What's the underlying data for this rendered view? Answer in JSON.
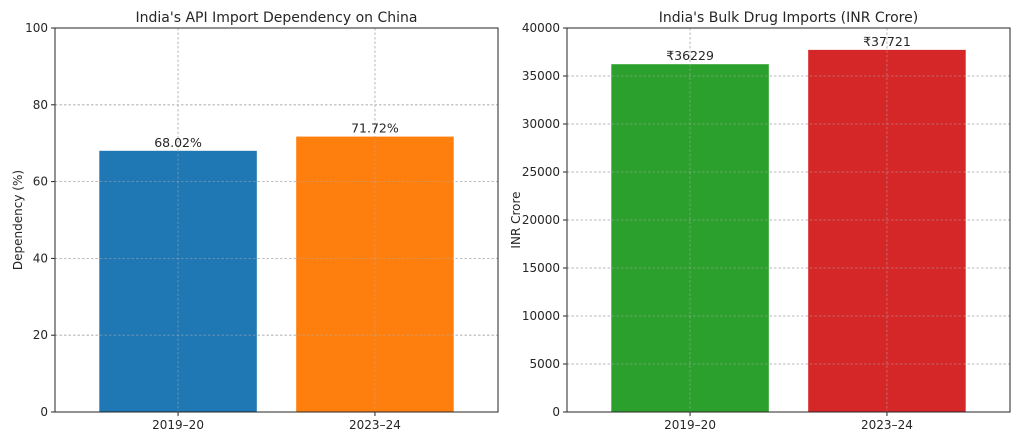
{
  "chart_data": [
    {
      "type": "bar",
      "title": "India's API Import Dependency on China",
      "xlabel": "",
      "ylabel": "Dependency (%)",
      "categories": [
        "2019–20",
        "2023–24"
      ],
      "values": [
        68.02,
        71.72
      ],
      "data_labels": [
        "68.02%",
        "71.72%"
      ],
      "colors": [
        "#1f77b4",
        "#ff7f0e"
      ],
      "ylim": [
        0,
        100
      ],
      "yticks": [
        0,
        20,
        40,
        60,
        80,
        100
      ],
      "grid": true
    },
    {
      "type": "bar",
      "title": "India's Bulk Drug Imports (INR Crore)",
      "xlabel": "",
      "ylabel": "INR Crore",
      "categories": [
        "2019–20",
        "2023–24"
      ],
      "values": [
        36229,
        37721
      ],
      "data_labels": [
        "₹36229",
        "₹37721"
      ],
      "colors": [
        "#2ca02c",
        "#d62728"
      ],
      "ylim": [
        0,
        40000
      ],
      "yticks": [
        0,
        5000,
        10000,
        15000,
        20000,
        25000,
        30000,
        35000,
        40000
      ],
      "grid": true
    }
  ]
}
